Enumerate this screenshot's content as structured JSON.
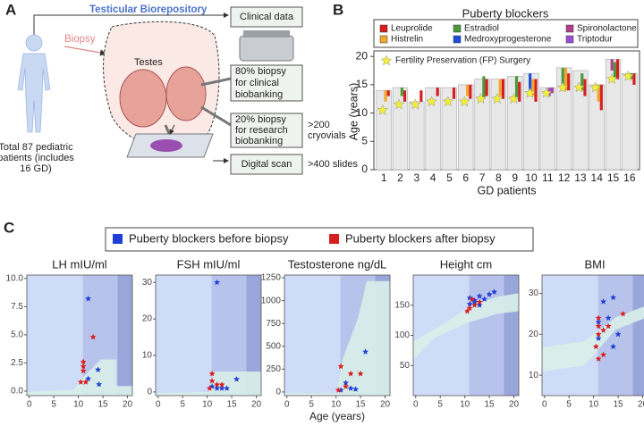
{
  "panel_a": {
    "label": "A",
    "title": "Testicular Biorepository",
    "clinical": "Clinical data",
    "biopsy": "Biopsy",
    "testes": "Testes",
    "clinical_biobanking": [
      "80% biopsy",
      "for clinical",
      "biobanking"
    ],
    "research_biobanking": [
      "20% biopsy",
      "for research",
      "biobanking"
    ],
    "cryovials": [
      ">200",
      "cryovials"
    ],
    "scan": "Digital scan",
    "slides": ">400 slides",
    "patients": [
      "Total 87 pediatric",
      "patients (includes",
      "16 GD)"
    ]
  },
  "panel_b_label": "B",
  "panel_c": {
    "label": "C",
    "legend": [
      {
        "name": "Puberty blockers before biopsy",
        "color": "#1f3fd6"
      },
      {
        "name": "Puberty blockers after biopsy",
        "color": "#d62020"
      }
    ]
  },
  "chart_data": [
    {
      "type": "bar",
      "title": "Puberty blockers",
      "y_label": "Age (years)",
      "x_label": "GD patients",
      "categories": [
        "1",
        "2",
        "3",
        "4",
        "5",
        "6",
        "7",
        "8",
        "9",
        "10",
        "11",
        "12",
        "13",
        "14",
        "15",
        "16"
      ],
      "values": [
        14,
        14.5,
        12,
        14.5,
        14.5,
        15,
        16,
        16,
        16.5,
        17,
        14.5,
        18,
        17.5,
        15,
        19.5,
        17
      ],
      "color": "#e8e8e8",
      "ylim": [
        0,
        20.5
      ],
      "yticks": [
        0,
        5,
        10,
        15,
        20
      ],
      "fp_surgery": {
        "name": "Fertility Preservation (FP) Surgery",
        "color": "#f2ee3a",
        "values": [
          10.5,
          11.5,
          11.5,
          12,
          12,
          12,
          12.5,
          12.5,
          12.5,
          13.5,
          13.5,
          14.5,
          14.5,
          14.5,
          16,
          16.5
        ]
      },
      "series": [
        {
          "name": "Leuprolide",
          "color": "#d62020",
          "segments": [
            {
              "patient": "1",
              "start": 13,
              "end": 14
            },
            {
              "patient": "2",
              "start": 12,
              "end": 14
            },
            {
              "patient": "3",
              "start": 12,
              "end": 14
            },
            {
              "patient": "4",
              "start": 13,
              "end": 14.5
            },
            {
              "patient": "5",
              "start": 12.5,
              "end": 14.5
            },
            {
              "patient": "6",
              "start": 12.5,
              "end": 15
            },
            {
              "patient": "7",
              "start": 13,
              "end": 16
            },
            {
              "patient": "8",
              "start": 12.5,
              "end": 16
            },
            {
              "patient": "9",
              "start": 12,
              "end": 15.5
            },
            {
              "patient": "10",
              "start": 12,
              "end": 16
            },
            {
              "patient": "12",
              "start": 14,
              "end": 17
            },
            {
              "patient": "13",
              "start": 13,
              "end": 16
            },
            {
              "patient": "14",
              "start": 10.5,
              "end": 15
            },
            {
              "patient": "15",
              "start": 16,
              "end": 19.5
            },
            {
              "patient": "16",
              "start": 15,
              "end": 17
            }
          ]
        },
        {
          "name": "Histrelin",
          "color": "#f0a830",
          "segments": [
            {
              "patient": "1",
              "start": 12,
              "end": 14
            },
            {
              "patient": "6",
              "start": 13,
              "end": 15
            },
            {
              "patient": "8",
              "start": 13,
              "end": 16
            },
            {
              "patient": "10",
              "start": 13,
              "end": 16
            },
            {
              "patient": "12",
              "start": 14,
              "end": 18
            },
            {
              "patient": "14",
              "start": 12,
              "end": 15
            }
          ]
        },
        {
          "name": "Estradiol",
          "color": "#4a9a3a",
          "segments": [
            {
              "patient": "2",
              "start": 13,
              "end": 14.5
            },
            {
              "patient": "7",
              "start": 12.5,
              "end": 16.5
            },
            {
              "patient": "9",
              "start": 12.5,
              "end": 16.5
            },
            {
              "patient": "12",
              "start": 14,
              "end": 18
            },
            {
              "patient": "13",
              "start": 14,
              "end": 17
            },
            {
              "patient": "14",
              "start": 14,
              "end": 15
            },
            {
              "patient": "15",
              "start": 16,
              "end": 19
            },
            {
              "patient": "16",
              "start": 16,
              "end": 17
            }
          ]
        },
        {
          "name": "Medroxyprogesterone",
          "color": "#1f4fd8",
          "segments": [
            {
              "patient": "10",
              "start": 14,
              "end": 17
            }
          ]
        },
        {
          "name": "Spironolactone",
          "color": "#b0408a",
          "segments": [
            {
              "patient": "11",
              "start": 13.5,
              "end": 14.5
            },
            {
              "patient": "15",
              "start": 17.5,
              "end": 19.5
            }
          ]
        },
        {
          "name": "Triptodur",
          "color": "#9b4fd0",
          "segments": [
            {
              "patient": "11",
              "start": 13,
              "end": 14.5
            }
          ]
        }
      ]
    },
    {
      "type": "scatter",
      "title": "LH mIU/ml",
      "xlim": [
        -0.5,
        21
      ],
      "xticks": [
        0,
        5,
        10,
        15,
        20
      ],
      "ylim": [
        -0.4,
        10.3
      ],
      "yticks": [
        {
          "value": 0,
          "label": "0.0"
        },
        {
          "value": 2.5,
          "label": "2.5"
        },
        {
          "value": 5,
          "label": "5.0"
        },
        {
          "value": 7.5,
          "label": "7.5"
        },
        {
          "value": 10,
          "label": "10.0"
        }
      ],
      "series": [
        {
          "x": [
            12,
            14,
            12,
            14.2
          ],
          "values": [
            8.2,
            1.9,
            1.1,
            0.6
          ]
        },
        {
          "x": [
            13,
            11,
            11,
            11,
            10.5,
            11.5
          ],
          "values": [
            4.8,
            2.6,
            2.2,
            1.8,
            0.8,
            0.8
          ]
        }
      ]
    },
    {
      "type": "scatter",
      "title": "FSH mIU/ml",
      "xlim": [
        -0.5,
        21
      ],
      "xticks": [
        0,
        5,
        10,
        15,
        20
      ],
      "ylim": [
        -1,
        32
      ],
      "yticks": [
        0,
        10,
        20,
        30
      ],
      "series": [
        {
          "x": [
            12,
            16,
            11,
            12,
            13,
            14
          ],
          "values": [
            30,
            3.5,
            1.5,
            1,
            1,
            1
          ]
        },
        {
          "x": [
            11,
            11,
            12,
            13,
            10.5
          ],
          "values": [
            5,
            3,
            2,
            2,
            1
          ]
        }
      ]
    },
    {
      "type": "scatter",
      "title": "Testosterone ng/dL",
      "x_label": "Age (years)",
      "xlim": [
        -0.5,
        21
      ],
      "xticks": [
        0,
        5,
        10,
        15,
        20
      ],
      "ylim": [
        -40,
        1280
      ],
      "yticks": [
        0,
        250,
        500,
        750,
        1000,
        1250
      ],
      "series": [
        {
          "x": [
            16,
            12,
            13,
            14,
            11
          ],
          "values": [
            440,
            100,
            40,
            30,
            20
          ]
        },
        {
          "x": [
            11,
            13,
            15,
            12,
            10.5
          ],
          "values": [
            280,
            200,
            200,
            60,
            20
          ]
        }
      ]
    },
    {
      "type": "scatter",
      "title": "Height cm",
      "xlim": [
        -0.5,
        21
      ],
      "xticks": [
        0,
        5,
        10,
        15,
        20
      ],
      "ylim": [
        0,
        200
      ],
      "yticks": [
        50,
        100,
        150
      ],
      "series": [
        {
          "x": [
            11,
            12,
            13,
            14,
            15,
            16,
            13,
            12,
            11
          ],
          "values": [
            162,
            158,
            165,
            160,
            168,
            172,
            150,
            155,
            152
          ]
        },
        {
          "x": [
            10.5,
            11,
            12,
            13,
            11.5
          ],
          "values": [
            140,
            145,
            150,
            155,
            160
          ]
        }
      ]
    },
    {
      "type": "scatter",
      "title": "BMI",
      "xlim": [
        -0.5,
        21
      ],
      "xticks": [
        0,
        5,
        10,
        15,
        20
      ],
      "ylim": [
        5,
        34.5
      ],
      "yticks": [
        10,
        20,
        30
      ],
      "series": [
        {
          "x": [
            14,
            12,
            11,
            13,
            15,
            14,
            11
          ],
          "values": [
            29,
            28,
            23,
            24,
            20,
            17,
            19
          ]
        },
        {
          "x": [
            11,
            11,
            12,
            11,
            10.5,
            11,
            13,
            16,
            12
          ],
          "values": [
            24,
            22,
            21,
            20,
            17,
            14,
            22,
            25,
            15
          ]
        }
      ]
    }
  ]
}
